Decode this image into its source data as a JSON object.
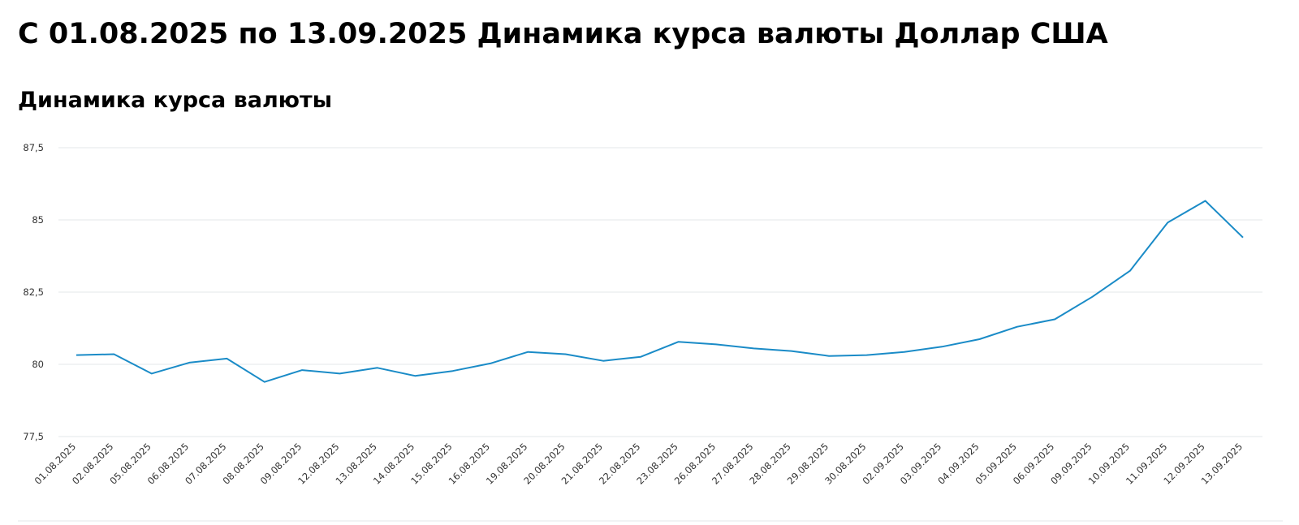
{
  "page_title": "С 01.08.2025 по 13.09.2025 Динамика курса валюты Доллар США",
  "chart_data": {
    "type": "line",
    "title": "Динамика курса валюты",
    "categories": [
      "01.08.2025",
      "02.08.2025",
      "05.08.2025",
      "06.08.2025",
      "07.08.2025",
      "08.08.2025",
      "09.08.2025",
      "12.08.2025",
      "13.08.2025",
      "14.08.2025",
      "15.08.2025",
      "16.08.2025",
      "19.08.2025",
      "20.08.2025",
      "21.08.2025",
      "22.08.2025",
      "23.08.2025",
      "26.08.2025",
      "27.08.2025",
      "28.08.2025",
      "29.08.2025",
      "30.08.2025",
      "02.09.2025",
      "03.09.2025",
      "04.09.2025",
      "05.09.2025",
      "06.09.2025",
      "09.09.2025",
      "10.09.2025",
      "11.09.2025",
      "12.09.2025",
      "13.09.2025"
    ],
    "values": [
      80.32,
      80.35,
      79.68,
      80.06,
      80.2,
      79.39,
      79.8,
      79.68,
      79.88,
      79.6,
      79.77,
      80.03,
      80.43,
      80.35,
      80.12,
      80.26,
      80.78,
      80.69,
      80.55,
      80.46,
      80.29,
      80.32,
      80.43,
      80.61,
      80.87,
      81.3,
      81.56,
      82.34,
      83.24,
      84.91,
      85.66,
      84.39
    ],
    "color": "#1a8bc7",
    "ylim": [
      77.5,
      87.5
    ],
    "yticks": [
      {
        "value": 77.5,
        "label": "77,5"
      },
      80,
      {
        "value": 82.5,
        "label": "82,5"
      },
      85,
      {
        "value": 87.5,
        "label": "87,5"
      }
    ],
    "grid": true
  }
}
